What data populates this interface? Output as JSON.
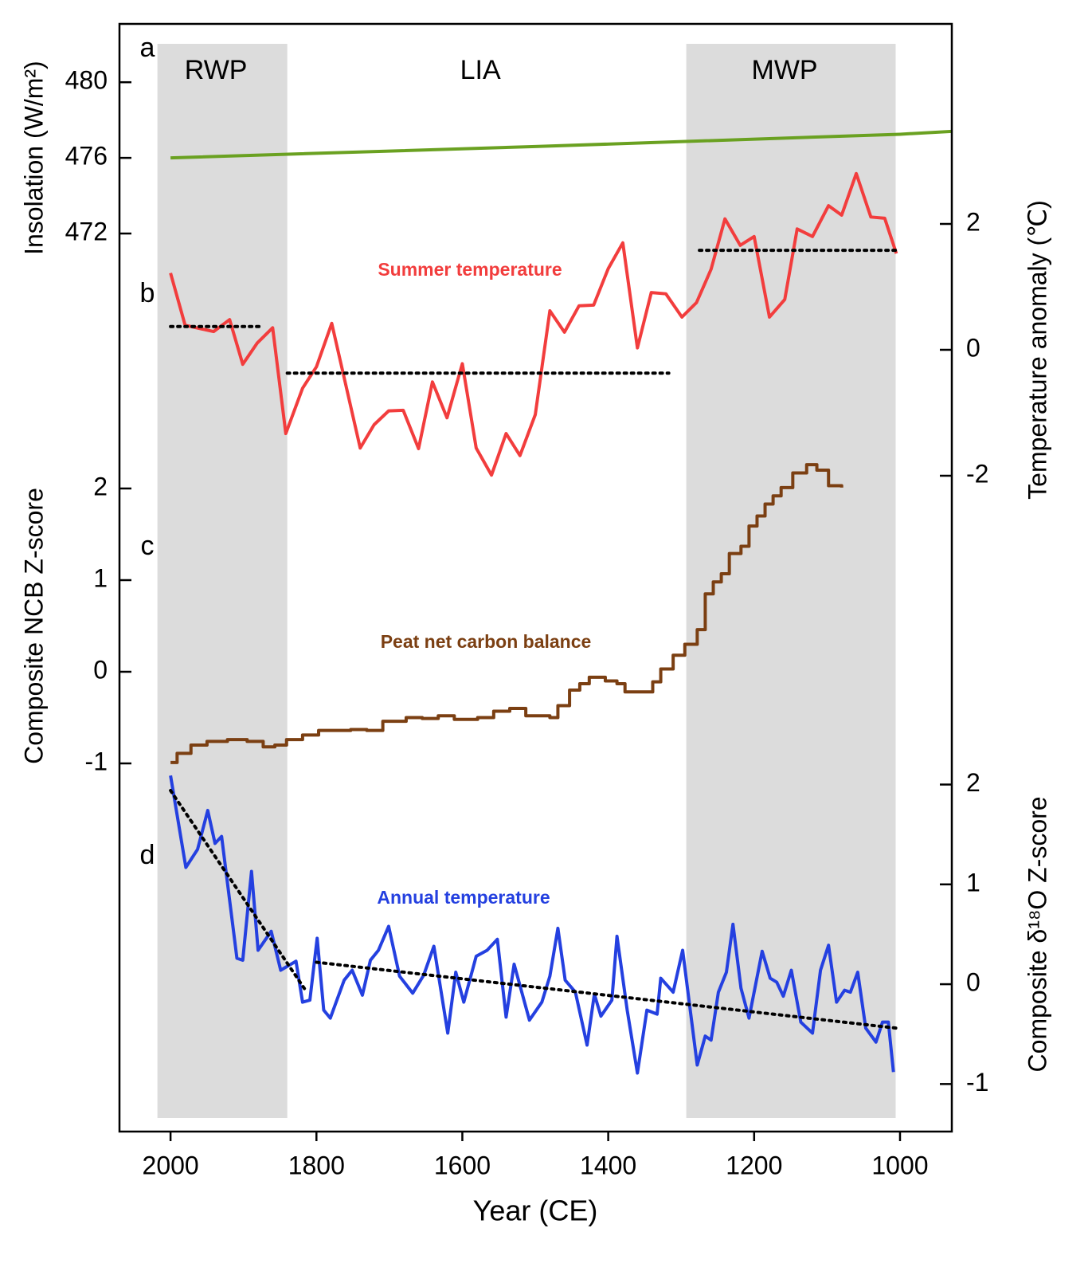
{
  "chart_data": {
    "type": "line",
    "xlabel": "Year (CE)",
    "xlim": [
      2070,
      929
    ],
    "xticks": [
      2000,
      1800,
      1600,
      1400,
      1200,
      1000
    ],
    "periods": [
      {
        "label": "RWP",
        "start": 2018,
        "end": 1840,
        "shaded": true
      },
      {
        "label": "LIA",
        "start": 1840,
        "end": 1293,
        "shaded": false
      },
      {
        "label": "MWP",
        "start": 1293,
        "end": 1006,
        "shaded": true
      }
    ],
    "panels": [
      {
        "label": "a",
        "type": "line",
        "ylabel": "Insolation (W/m²)",
        "side": "left",
        "ylim": [
          470,
          483
        ],
        "yticks": [
          472,
          476,
          480
        ],
        "series": [
          {
            "color": "#6aa121",
            "style": "solid",
            "x": [
              2000,
              1500,
              1000,
              929
            ],
            "values": [
              476.0,
              476.6,
              477.25,
              477.4
            ]
          }
        ]
      },
      {
        "label": "b",
        "type": "line",
        "ylabel": "Temperature anomaly (℃)",
        "side": "right",
        "ylim": [
          -2.5,
          3
        ],
        "yticks": [
          -2,
          0,
          2
        ],
        "series": [
          {
            "name": "Summer temperature",
            "color": "#f23d3d",
            "style": "solid",
            "x": [
              2000,
              1980,
              1941,
              1919,
              1901,
              1881,
              1860,
              1842,
              1819,
              1800,
              1779,
              1740,
              1721,
              1701,
              1681,
              1660,
              1641,
              1621,
              1600,
              1581,
              1560,
              1540,
              1521,
              1500,
              1480,
              1460,
              1440,
              1420,
              1400,
              1380,
              1360,
              1341,
              1321,
              1299,
              1279,
              1259,
              1240,
              1219,
              1200,
              1179,
              1158,
              1141,
              1120,
              1098,
              1080,
              1060,
              1040,
              1021,
              1005
            ],
            "values": [
              1.22,
              0.39,
              0.29,
              0.48,
              -0.23,
              0.11,
              0.35,
              -1.33,
              -0.61,
              -0.27,
              0.42,
              -1.56,
              -1.19,
              -0.97,
              -0.96,
              -1.57,
              -0.51,
              -1.08,
              -0.22,
              -1.56,
              -1.99,
              -1.33,
              -1.68,
              -1.03,
              0.62,
              0.28,
              0.7,
              0.71,
              1.29,
              1.7,
              0.03,
              0.91,
              0.89,
              0.52,
              0.75,
              1.28,
              2.08,
              1.66,
              1.8,
              0.52,
              0.8,
              1.92,
              1.8,
              2.29,
              2.14,
              2.8,
              2.11,
              2.09,
              1.53
            ]
          },
          {
            "color": "#000000",
            "style": "dotted",
            "x": [
              2000,
              1875
            ],
            "values": [
              0.37,
              0.37
            ]
          },
          {
            "color": "#000000",
            "style": "dotted",
            "x": [
              1840,
              1317
            ],
            "values": [
              -0.37,
              -0.37
            ]
          },
          {
            "color": "#000000",
            "style": "dotted",
            "x": [
              1275,
              1006
            ],
            "values": [
              1.58,
              1.58
            ]
          }
        ]
      },
      {
        "label": "c",
        "type": "step",
        "ylabel": "Composite NCB Z-score",
        "side": "left",
        "ylim": [
          -1.2,
          2.3
        ],
        "yticks": [
          -1,
          0,
          1,
          2
        ],
        "series": [
          {
            "name": "Peat net carbon balance",
            "color": "#7b3f12",
            "style": "solid",
            "x": [
              2000,
              1991,
              1972,
              1950,
              1922,
              1895,
              1873,
              1857,
              1841,
              1819,
              1797,
              1753,
              1731,
              1709,
              1677,
              1655,
              1633,
              1611,
              1579,
              1557,
              1535,
              1513,
              1480,
              1469,
              1453,
              1439,
              1426,
              1404,
              1388,
              1377,
              1355,
              1339,
              1328,
              1311,
              1295,
              1278,
              1267,
              1256,
              1245,
              1234,
              1218,
              1207,
              1196,
              1185,
              1174,
              1163,
              1147,
              1128,
              1114,
              1098,
              1080
            ],
            "values": [
              -0.99,
              -0.89,
              -0.8,
              -0.76,
              -0.74,
              -0.76,
              -0.82,
              -0.8,
              -0.74,
              -0.69,
              -0.64,
              -0.63,
              -0.64,
              -0.54,
              -0.5,
              -0.51,
              -0.48,
              -0.52,
              -0.5,
              -0.43,
              -0.4,
              -0.48,
              -0.5,
              -0.37,
              -0.2,
              -0.13,
              -0.06,
              -0.1,
              -0.13,
              -0.22,
              -0.22,
              -0.11,
              0.03,
              0.18,
              0.3,
              0.46,
              0.85,
              0.98,
              1.07,
              1.29,
              1.37,
              1.59,
              1.7,
              1.83,
              1.92,
              2.01,
              2.17,
              2.26,
              2.2,
              2.03,
              2.01
            ]
          }
        ]
      },
      {
        "label": "d",
        "type": "line",
        "ylabel": "Composite δ¹⁸O Z-score",
        "side": "right",
        "ylim": [
          -1.2,
          2.1
        ],
        "yticks": [
          -1,
          0,
          1,
          2
        ],
        "series": [
          {
            "name": "Annual temperature",
            "color": "#2440e0",
            "style": "solid",
            "x": [
              2000,
              1979,
              1963,
              1949,
              1939,
              1930,
              1909,
              1901,
              1889,
              1880,
              1862,
              1849,
              1828,
              1819,
              1809,
              1799,
              1790,
              1781,
              1762,
              1751,
              1737,
              1726,
              1715,
              1701,
              1686,
              1668,
              1653,
              1639,
              1620,
              1609,
              1598,
              1581,
              1566,
              1552,
              1540,
              1529,
              1508,
              1491,
              1480,
              1469,
              1459,
              1445,
              1429,
              1419,
              1410,
              1395,
              1388,
              1374,
              1360,
              1347,
              1333,
              1328,
              1311,
              1298,
              1278,
              1267,
              1259,
              1249,
              1238,
              1229,
              1218,
              1207,
              1189,
              1178,
              1169,
              1160,
              1149,
              1136,
              1120,
              1109,
              1098,
              1087,
              1076,
              1068,
              1058,
              1047,
              1033,
              1024,
              1016,
              1009
            ],
            "values": [
              2.09,
              1.17,
              1.35,
              1.74,
              1.41,
              1.48,
              0.26,
              0.24,
              1.13,
              0.34,
              0.53,
              0.14,
              0.23,
              -0.18,
              -0.16,
              0.46,
              -0.26,
              -0.34,
              0.04,
              0.14,
              -0.11,
              0.24,
              0.34,
              0.58,
              0.08,
              -0.09,
              0.09,
              0.38,
              -0.49,
              0.12,
              -0.18,
              0.28,
              0.34,
              0.45,
              -0.33,
              0.2,
              -0.36,
              -0.18,
              0.08,
              0.56,
              0.04,
              -0.08,
              -0.61,
              -0.1,
              -0.32,
              -0.16,
              0.48,
              -0.26,
              -0.89,
              -0.26,
              -0.3,
              0.06,
              -0.08,
              0.34,
              -0.81,
              -0.52,
              -0.56,
              -0.08,
              0.12,
              0.6,
              -0.04,
              -0.34,
              0.33,
              0.06,
              0.02,
              -0.12,
              0.14,
              -0.38,
              -0.49,
              0.14,
              0.39,
              -0.18,
              -0.06,
              -0.08,
              0.12,
              -0.44,
              -0.58,
              -0.38,
              -0.38,
              -0.88
            ]
          },
          {
            "color": "#000000",
            "style": "dotted",
            "x": [
              2000,
              1815
            ],
            "values": [
              1.94,
              -0.06
            ]
          },
          {
            "color": "#000000",
            "style": "dotted",
            "x": [
              1800,
              1005
            ],
            "values": [
              0.22,
              -0.44
            ]
          }
        ]
      }
    ]
  }
}
